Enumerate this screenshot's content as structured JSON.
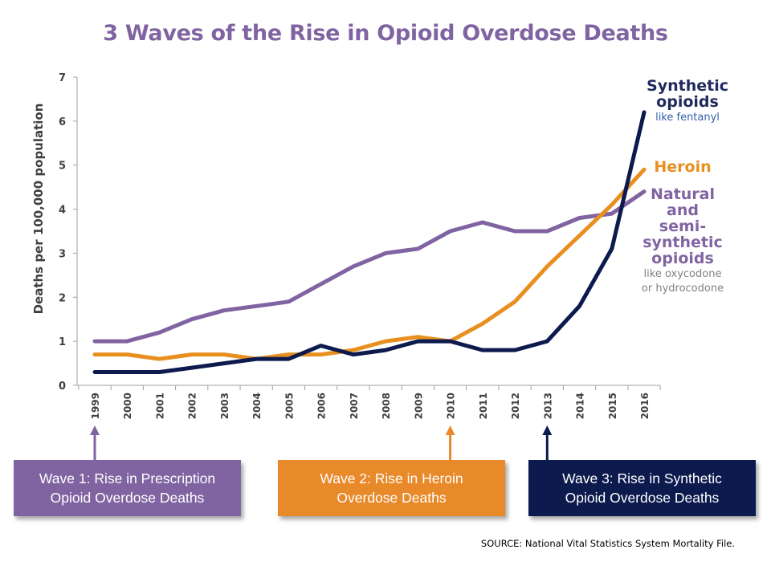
{
  "chart_data": {
    "type": "line",
    "title": "3 Waves of the Rise in Opioid Overdose Deaths",
    "xlabel": "",
    "ylabel": "Deaths per 100,000 population",
    "ylim": [
      0,
      7
    ],
    "yticks": [
      0,
      1,
      2,
      3,
      4,
      5,
      6,
      7
    ],
    "x": [
      "1999",
      "2000",
      "2001",
      "2002",
      "2003",
      "2004",
      "2005",
      "2006",
      "2007",
      "2008",
      "2009",
      "2010",
      "2011",
      "2012",
      "2013",
      "2014",
      "2015",
      "2016"
    ],
    "grid": false,
    "series": [
      {
        "name": "Natural and semi-synthetic opioids",
        "color": "#8064a2",
        "values": [
          1.0,
          1.0,
          1.2,
          1.5,
          1.7,
          1.8,
          1.9,
          2.3,
          2.7,
          3.0,
          3.1,
          3.5,
          3.7,
          3.5,
          3.5,
          3.8,
          3.9,
          4.4
        ]
      },
      {
        "name": "Heroin",
        "color": "#e8901f",
        "values": [
          0.7,
          0.7,
          0.6,
          0.7,
          0.7,
          0.6,
          0.7,
          0.7,
          0.8,
          1.0,
          1.1,
          1.0,
          1.4,
          1.9,
          2.7,
          3.4,
          4.1,
          4.9
        ]
      },
      {
        "name": "Synthetic opioids",
        "color": "#0c1a4e",
        "values": [
          0.3,
          0.3,
          0.3,
          0.4,
          0.5,
          0.6,
          0.6,
          0.9,
          0.7,
          0.8,
          1.0,
          1.0,
          0.8,
          0.8,
          1.0,
          1.8,
          3.1,
          6.2
        ]
      }
    ],
    "annotations": [
      {
        "year": "1999",
        "text": "Wave 1: Rise in Prescription Opioid Overdose Deaths",
        "color": "#8064a2"
      },
      {
        "year": "2010",
        "text": "Wave 2: Rise in Heroin Overdose Deaths",
        "color": "#e8892a"
      },
      {
        "year": "2013",
        "text": "Wave 3: Rise in Synthetic Opioid Overdose Deaths",
        "color": "#0c1a4e"
      }
    ]
  },
  "labels": {
    "synthetic": {
      "line1": "Synthetic",
      "line2": "opioids",
      "sub": "like fentanyl"
    },
    "heroin": {
      "line1": "Heroin"
    },
    "natural": {
      "line1": "Natural",
      "line2": "and",
      "line3": "semi-",
      "line4": "synthetic",
      "line5": "opioids",
      "sub1": "like oxycodone",
      "sub2": "or hydrocodone"
    }
  },
  "waves": {
    "wave1": {
      "line1": "Wave 1: Rise in Prescription",
      "line2": "Opioid Overdose Deaths"
    },
    "wave2": {
      "line1": "Wave 2: Rise in Heroin",
      "line2": "Overdose Deaths"
    },
    "wave3": {
      "line1": "Wave 3: Rise in Synthetic",
      "line2": "Opioid Overdose Deaths"
    }
  },
  "source": "SOURCE: National Vital Statistics System Mortality File."
}
